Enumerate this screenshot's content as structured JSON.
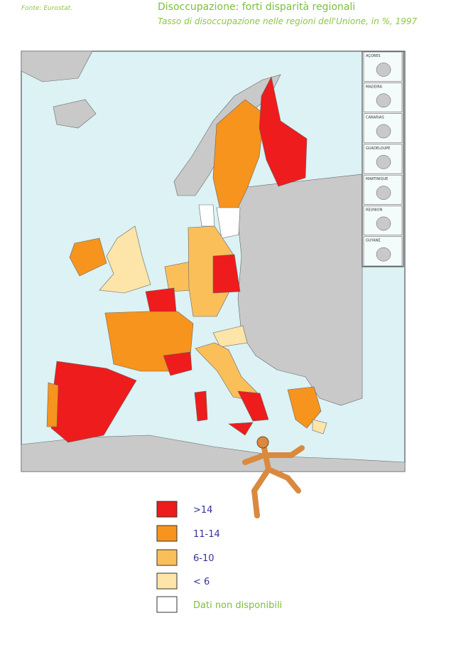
{
  "header": {
    "source": "Fonte: Eurostat.",
    "title": "Disoccupazione: forti disparità regionali",
    "subtitle": "Tasso di disoccupazione nelle regioni dell'Unione, in %, 1997"
  },
  "insets": [
    "AÇORES",
    "MADEIRA",
    "CANARIAS",
    "GUADELOUPE",
    "MARTINIQUE",
    "REUNION",
    "GUYANE"
  ],
  "legend": [
    {
      "label": ">14",
      "color": "#ee1c1c"
    },
    {
      "label": "11-14",
      "color": "#f7941d"
    },
    {
      "label": "6-10",
      "color": "#fbbf5a"
    },
    {
      "label": "< 6",
      "color": "#fde4a8"
    },
    {
      "label": "Dati non disponibili",
      "color": "#ffffff"
    }
  ]
}
